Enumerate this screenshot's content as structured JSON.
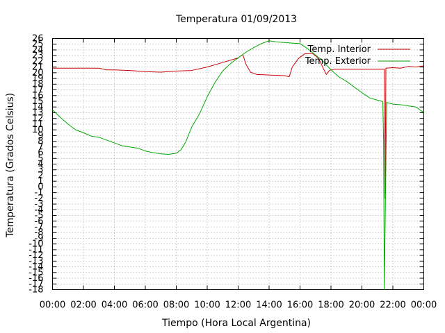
{
  "chart_data": {
    "type": "line",
    "title": "Temperatura 01/09/2013",
    "xlabel": "Tiempo (Hora Local Argentina)",
    "ylabel": "Temperatura (Grados Celsius)",
    "xlim": [
      0,
      24
    ],
    "ylim": [
      -18,
      26
    ],
    "x_tick_labels": [
      "00:00",
      "02:00",
      "04:00",
      "06:00",
      "08:00",
      "10:00",
      "12:00",
      "14:00",
      "16:00",
      "18:00",
      "20:00",
      "22:00",
      "00:00"
    ],
    "y_tick_labels": [
      "-18",
      "-17",
      "-16",
      "-15",
      "-14",
      "-13",
      "-12",
      "-11",
      "-10",
      "-9",
      "-8",
      "-7",
      "-6",
      "-5",
      "-4",
      "-3",
      "-2",
      "-1",
      "0",
      "1",
      "2",
      "3",
      "4",
      "5",
      "6",
      "7",
      "8",
      "9",
      "10",
      "11",
      "12",
      "13",
      "14",
      "15",
      "16",
      "17",
      "18",
      "19",
      "20",
      "21",
      "22",
      "23",
      "24",
      "25",
      "26"
    ],
    "grid": true,
    "legend_position": "top-right",
    "series": [
      {
        "name": "Temp. Interior",
        "color": "#cc0000",
        "x": [
          0,
          1,
          2,
          3,
          3.5,
          4,
          5,
          6,
          7,
          8,
          9,
          10,
          11,
          12,
          12.3,
          12.5,
          12.8,
          13.2,
          14,
          15,
          15.3,
          15.5,
          15.9,
          16.3,
          16.8,
          17.2,
          17.5,
          17.7,
          17.9,
          18.2,
          19,
          20,
          21,
          21.4,
          21.45,
          21.5,
          21.55,
          22,
          22.5,
          23,
          23.5,
          24
        ],
        "y": [
          20.8,
          20.8,
          20.8,
          20.8,
          20.5,
          20.5,
          20.4,
          20.2,
          20.1,
          20.3,
          20.4,
          21.0,
          21.8,
          22.6,
          23.2,
          21.5,
          20.1,
          19.7,
          19.6,
          19.5,
          19.3,
          21.0,
          22.5,
          23.3,
          23.4,
          22.5,
          20.8,
          19.7,
          20.4,
          20.6,
          20.6,
          20.6,
          20.6,
          20.6,
          20.6,
          -2.0,
          20.8,
          20.9,
          20.8,
          21.1,
          21.0,
          21.2
        ]
      },
      {
        "name": "Temp. Exterior",
        "color": "#00aa00",
        "x": [
          0,
          0.5,
          1,
          1.5,
          2,
          2.5,
          3,
          3.5,
          4,
          4.5,
          5,
          5.5,
          6,
          6.5,
          7,
          7.5,
          8,
          8.3,
          8.6,
          9,
          9.5,
          10,
          10.5,
          11,
          11.5,
          12,
          12.5,
          13,
          13.5,
          14,
          14.5,
          15,
          15.5,
          16,
          16.5,
          17,
          17.5,
          18,
          18.5,
          19,
          19.5,
          20,
          20.5,
          21,
          21.2,
          21.35,
          21.4,
          21.45,
          21.6,
          22,
          22.5,
          23,
          23.5,
          24
        ],
        "y": [
          13.5,
          12.2,
          11.0,
          10.0,
          9.5,
          8.9,
          8.7,
          8.2,
          7.7,
          7.2,
          7.0,
          6.8,
          6.3,
          6.0,
          5.8,
          5.7,
          5.9,
          6.5,
          7.8,
          10.5,
          12.8,
          15.8,
          18.3,
          20.3,
          21.6,
          22.6,
          23.6,
          24.4,
          25.1,
          25.6,
          25.4,
          25.3,
          25.2,
          25.1,
          24.2,
          23.1,
          22.0,
          20.5,
          19.3,
          18.5,
          17.5,
          16.5,
          15.6,
          15.2,
          15.1,
          14.9,
          8.0,
          -18.0,
          14.8,
          14.5,
          14.4,
          14.2,
          14.0,
          13.0
        ]
      }
    ]
  }
}
